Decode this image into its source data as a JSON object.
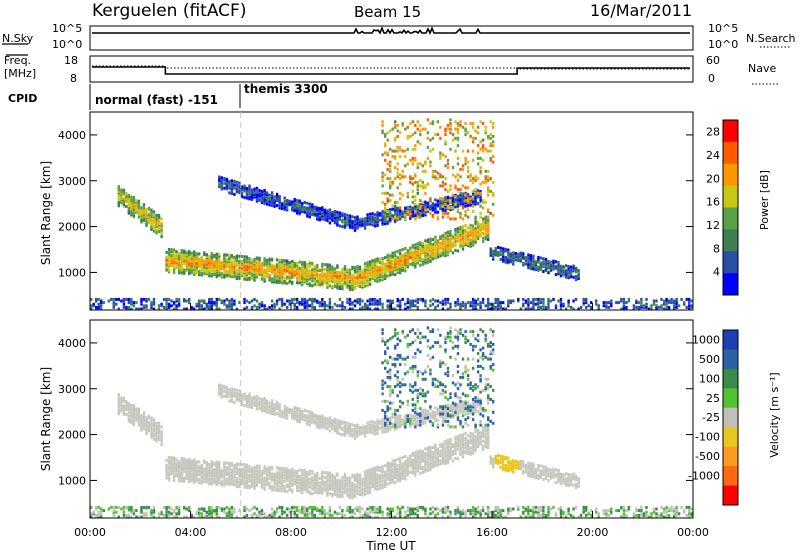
{
  "header": {
    "radar": "Kerguelen (fitACF)",
    "beam": "Beam 15",
    "date": "16/Mar/2011"
  },
  "top_panels": {
    "nsky_label": "N.Sky",
    "nsearch_label": "N.Search",
    "noise_ticks": [
      "10^5",
      "10^0"
    ],
    "freq_label_1": "Freq.",
    "freq_label_2": "[MHz]",
    "freq_ticks": [
      "18",
      "8"
    ],
    "nave_label": "Nave",
    "nave_ticks": [
      "60",
      "0"
    ],
    "cpid_label": "CPID",
    "cpid_segments": [
      {
        "label": "normal (fast) -151",
        "start_hr": 0
      },
      {
        "label": "themis 3300",
        "start_hr": 6
      }
    ]
  },
  "colors": {
    "power": [
      "#0000ff",
      "#2a4fa8",
      "#3d7f50",
      "#59a046",
      "#c8c814",
      "#ff9800",
      "#ff5a00",
      "#ff0000"
    ],
    "velocity": [
      "#1c3fb5",
      "#2a62a8",
      "#3a8c4a",
      "#52c232",
      "#c0c0b8",
      "#e8c820",
      "#ff9a20",
      "#ff6a10",
      "#ff0000"
    ],
    "grey": "#c8c8c0"
  },
  "chart_data": [
    {
      "type": "heatmap",
      "title": "Power",
      "ylabel": "Slant Range [km]",
      "xlabel": "Time UT",
      "xlim": [
        0,
        24
      ],
      "ylim": [
        180,
        4500
      ],
      "x_ticks": [
        "00:00",
        "04:00",
        "08:00",
        "12:00",
        "16:00",
        "20:00",
        "00:00"
      ],
      "y_ticks": [
        1000,
        2000,
        3000,
        4000
      ],
      "colorbar_label": "Power [dB]",
      "colorbar_ticks": [
        4,
        8,
        12,
        16,
        20,
        24,
        28
      ],
      "colorbar_range": [
        0,
        30
      ],
      "regions": [
        {
          "name": "main-band",
          "t_start": 3.0,
          "t_end": 15.8,
          "range_start_km": 1300,
          "range_mid_km": 900,
          "range_end_km": 2000,
          "mid_hr": 10.5,
          "width_km": 500,
          "power_db": 20
        },
        {
          "name": "early-band",
          "t_start": 1.0,
          "t_end": 2.9,
          "range_start_km": 2750,
          "range_end_km": 2000,
          "width_km": 450,
          "power_db": 18
        },
        {
          "name": "upper-arc",
          "t_start": 5.0,
          "t_end": 15.5,
          "range_start_km": 3000,
          "range_mid_km": 2100,
          "range_end_km": 2700,
          "mid_hr": 10.5,
          "width_km": 300,
          "power_db": 6
        },
        {
          "name": "sparse-upper",
          "t_start": 11.5,
          "t_end": 16.0,
          "range_start_km": 2200,
          "range_end_km": 4400,
          "power_db": 18
        },
        {
          "name": "post-band",
          "t_start": 15.8,
          "t_end": 19.5,
          "range_start_km": 1500,
          "range_end_km": 1000,
          "width_km": 300,
          "power_db": 8
        },
        {
          "name": "ground-clutter",
          "t_start": 0.0,
          "t_end": 24.0,
          "range_start_km": 200,
          "range_end_km": 450,
          "power_db": 6
        }
      ]
    },
    {
      "type": "heatmap",
      "title": "Velocity",
      "ylabel": "Slant Range [km]",
      "xlabel": "Time UT",
      "xlim": [
        0,
        24
      ],
      "ylim": [
        180,
        4500
      ],
      "x_ticks": [
        "00:00",
        "04:00",
        "08:00",
        "12:00",
        "16:00",
        "20:00",
        "00:00"
      ],
      "y_ticks": [
        1000,
        2000,
        3000,
        4000
      ],
      "colorbar_label": "Velocity [m s⁻¹]",
      "colorbar_ticks": [
        "1000",
        "500",
        "100",
        "25",
        "-25",
        "-100",
        "-500",
        "-1000"
      ],
      "regions": [
        {
          "name": "ground-scatter-band",
          "t_start": 1.0,
          "t_end": 15.8,
          "velocity_ms": 0
        },
        {
          "name": "upper-ionospheric",
          "t_start": 11.5,
          "t_end": 16.0,
          "range_start_km": 2200,
          "range_end_km": 4400,
          "velocity_ms": 100
        },
        {
          "name": "post-patch",
          "t_start": 16.0,
          "t_end": 17.0,
          "range_start_km": 1200,
          "range_end_km": 1600,
          "velocity_ms": -300
        }
      ]
    }
  ]
}
